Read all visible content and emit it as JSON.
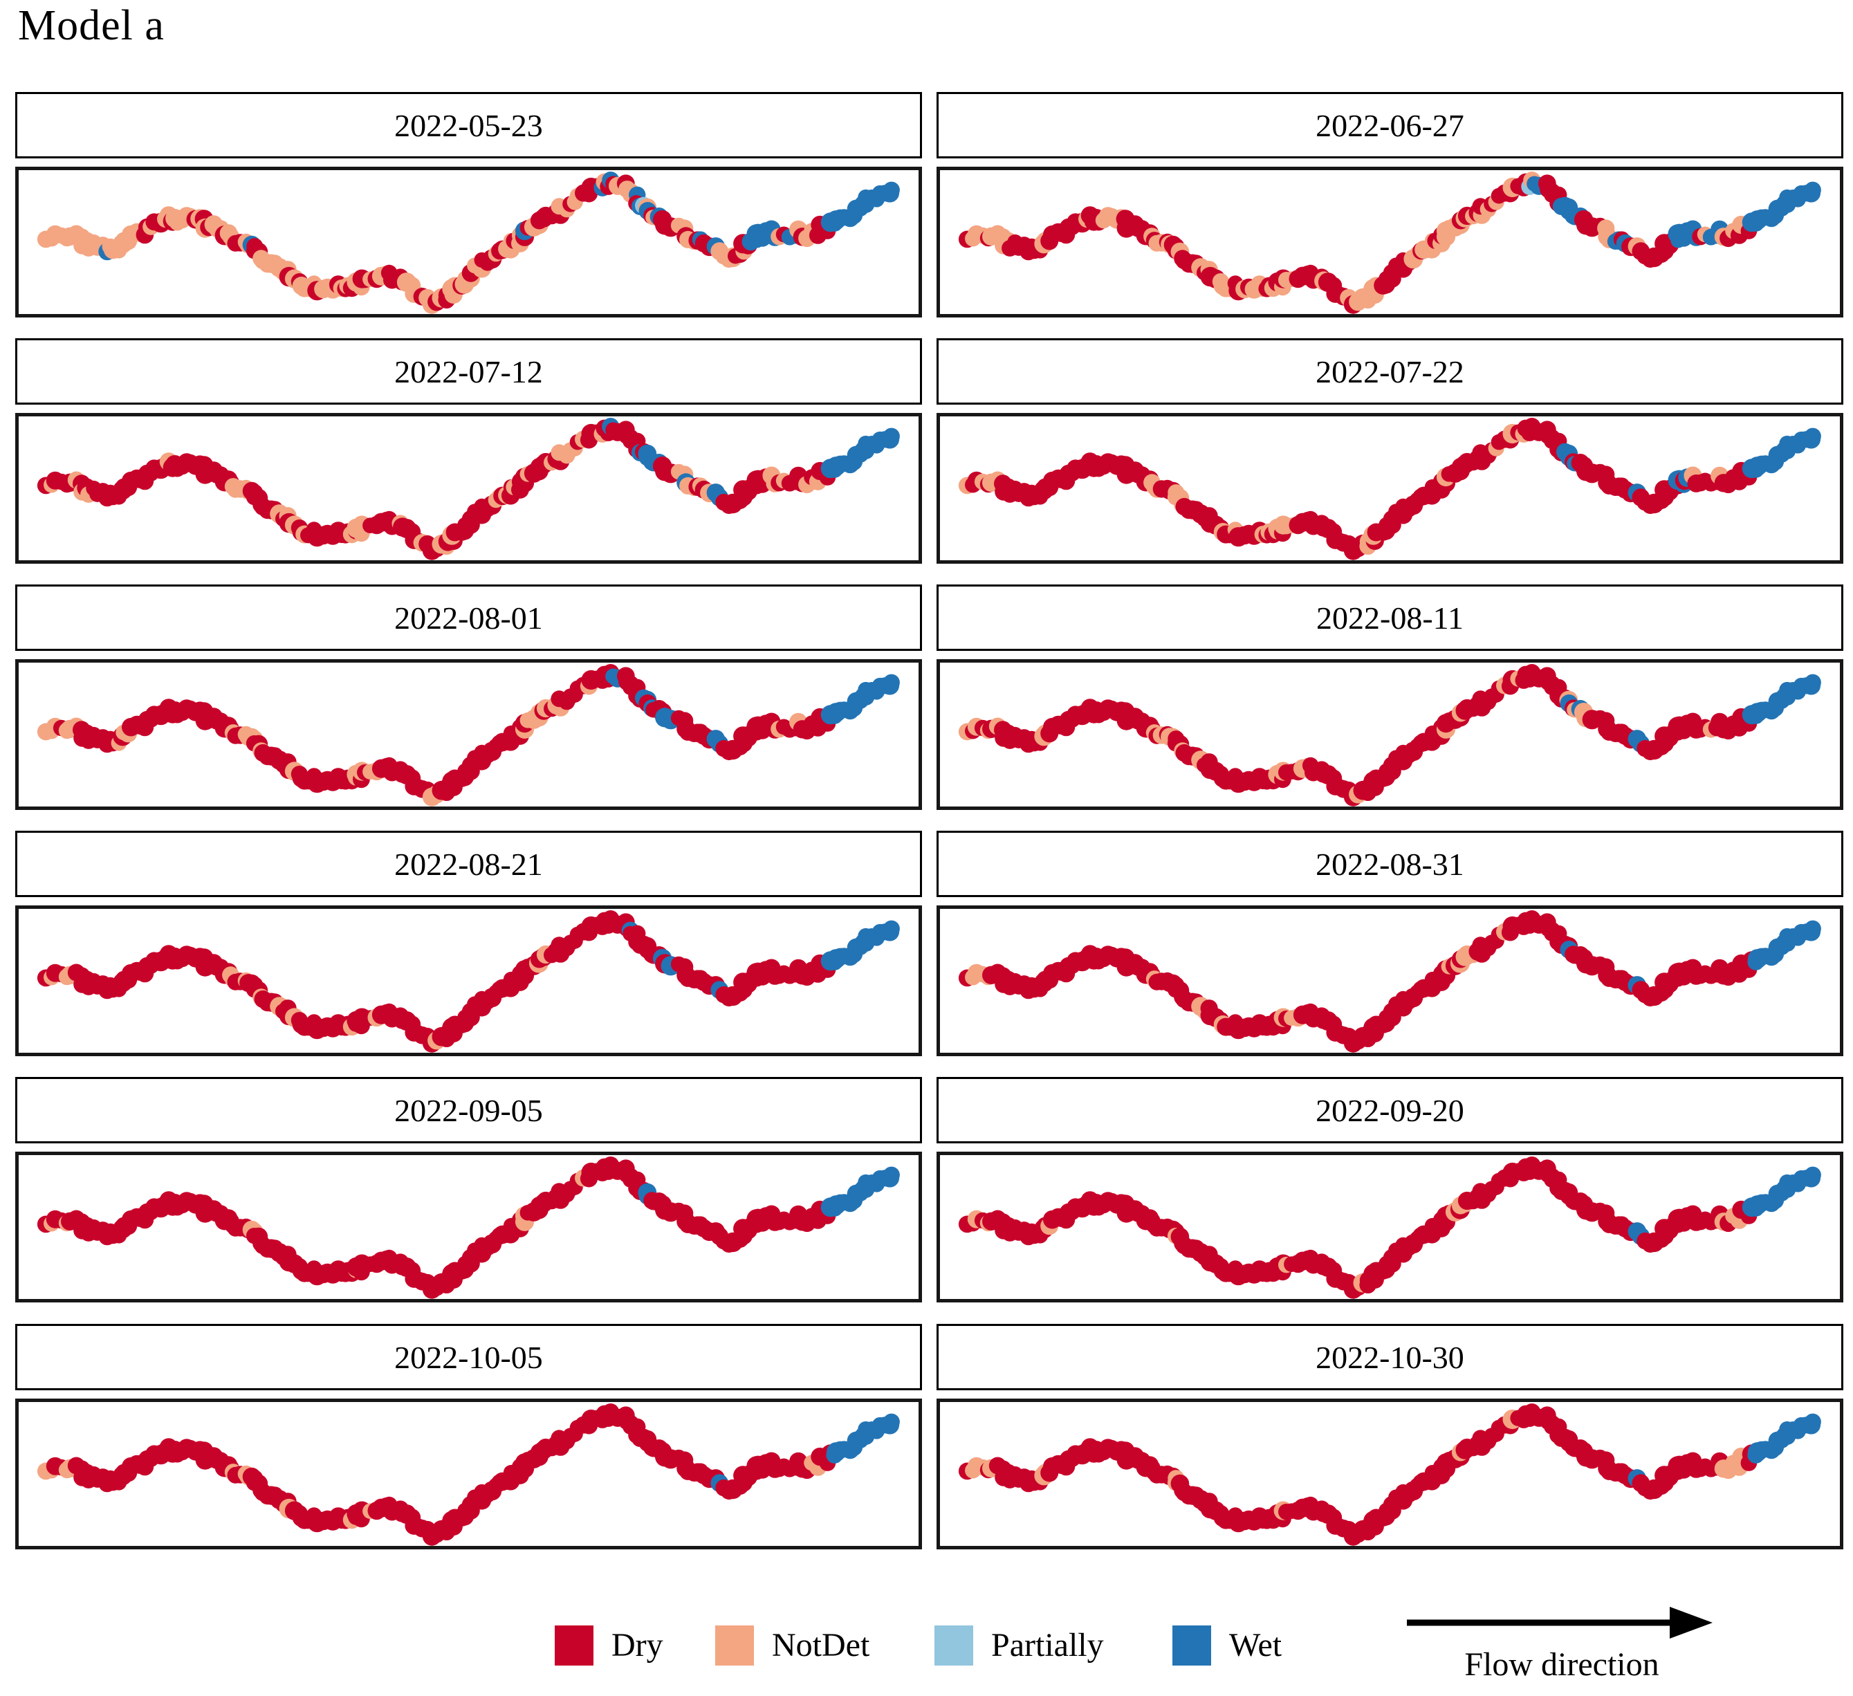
{
  "title": "Model a",
  "legend": {
    "items": [
      {
        "label": "Dry",
        "color": "#c8032a"
      },
      {
        "label": "NotDet",
        "color": "#f4a582"
      },
      {
        "label": "Partially",
        "color": "#92c5de"
      },
      {
        "label": "Wet",
        "color": "#2374b5"
      }
    ]
  },
  "flow": {
    "label": "Flow direction"
  },
  "chart_data": {
    "type": "scatter",
    "title": "Model a",
    "description": "Twelve faceted maps (6 rows x 2 columns) of the same river reach; overlapping dots along the channel are colored by wetness state on each survey date. Flow direction is left to right.",
    "facet_layout": {
      "rows": 6,
      "cols": 2
    },
    "states": [
      "Dry",
      "NotDet",
      "Partially",
      "Wet"
    ],
    "state_colors": {
      "Dry": "#c8032a",
      "NotDet": "#f4a582",
      "Partially": "#92c5de",
      "Wet": "#2374b5"
    },
    "path_points": [
      [
        0.03,
        0.47
      ],
      [
        0.045,
        0.45
      ],
      [
        0.06,
        0.46
      ],
      [
        0.075,
        0.52
      ],
      [
        0.09,
        0.54
      ],
      [
        0.105,
        0.55
      ],
      [
        0.12,
        0.5
      ],
      [
        0.14,
        0.4
      ],
      [
        0.158,
        0.33
      ],
      [
        0.175,
        0.31
      ],
      [
        0.19,
        0.32
      ],
      [
        0.205,
        0.35
      ],
      [
        0.22,
        0.41
      ],
      [
        0.235,
        0.46
      ],
      [
        0.25,
        0.51
      ],
      [
        0.265,
        0.58
      ],
      [
        0.28,
        0.66
      ],
      [
        0.295,
        0.73
      ],
      [
        0.31,
        0.8
      ],
      [
        0.325,
        0.86
      ],
      [
        0.34,
        0.88
      ],
      [
        0.352,
        0.86
      ],
      [
        0.364,
        0.88
      ],
      [
        0.378,
        0.84
      ],
      [
        0.392,
        0.79
      ],
      [
        0.405,
        0.77
      ],
      [
        0.418,
        0.8
      ],
      [
        0.432,
        0.85
      ],
      [
        0.447,
        0.91
      ],
      [
        0.462,
        0.97
      ],
      [
        0.474,
        0.94
      ],
      [
        0.487,
        0.86
      ],
      [
        0.5,
        0.77
      ],
      [
        0.513,
        0.69
      ],
      [
        0.527,
        0.62
      ],
      [
        0.54,
        0.57
      ],
      [
        0.553,
        0.49
      ],
      [
        0.567,
        0.41
      ],
      [
        0.58,
        0.35
      ],
      [
        0.594,
        0.28
      ],
      [
        0.608,
        0.22
      ],
      [
        0.622,
        0.16
      ],
      [
        0.636,
        0.09
      ],
      [
        0.65,
        0.04
      ],
      [
        0.662,
        0.02
      ],
      [
        0.673,
        0.06
      ],
      [
        0.684,
        0.13
      ],
      [
        0.696,
        0.21
      ],
      [
        0.708,
        0.28
      ],
      [
        0.722,
        0.34
      ],
      [
        0.736,
        0.41
      ],
      [
        0.75,
        0.48
      ],
      [
        0.764,
        0.53
      ],
      [
        0.778,
        0.59
      ],
      [
        0.79,
        0.63
      ],
      [
        0.8,
        0.58
      ],
      [
        0.812,
        0.5
      ],
      [
        0.825,
        0.45
      ],
      [
        0.838,
        0.43
      ],
      [
        0.851,
        0.46
      ],
      [
        0.864,
        0.41
      ],
      [
        0.877,
        0.44
      ],
      [
        0.89,
        0.4
      ],
      [
        0.903,
        0.36
      ],
      [
        0.916,
        0.31
      ],
      [
        0.93,
        0.24
      ],
      [
        0.944,
        0.17
      ],
      [
        0.958,
        0.13
      ],
      [
        0.972,
        0.1
      ]
    ],
    "facets": [
      {
        "date": "2022-05-23",
        "notdet_zones": [
          [
            0.0,
            0.075,
            0.85
          ],
          [
            0.075,
            0.13,
            0.45
          ],
          [
            0.13,
            0.2,
            0.55
          ],
          [
            0.2,
            0.335,
            0.6
          ],
          [
            0.335,
            0.47,
            0.5
          ],
          [
            0.47,
            0.56,
            0.6
          ],
          [
            0.56,
            0.665,
            0.55
          ],
          [
            0.665,
            0.7,
            0.45
          ],
          [
            0.7,
            0.79,
            0.45
          ],
          [
            0.79,
            0.835,
            0.4
          ],
          [
            0.865,
            0.93,
            0.5
          ]
        ],
        "wet_zones": [
          [
            0.062,
            0.072,
            0.5
          ],
          [
            0.228,
            0.242,
            0.55
          ],
          [
            0.43,
            0.442,
            0.45
          ],
          [
            0.555,
            0.565,
            0.4
          ],
          [
            0.648,
            0.662,
            0.5
          ],
          [
            0.69,
            0.75,
            0.5
          ],
          [
            0.77,
            0.8,
            0.35
          ],
          [
            0.835,
            0.868,
            0.95
          ],
          [
            0.875,
            0.888,
            0.55
          ],
          [
            0.925,
            1.0,
            1.0
          ]
        ],
        "partially_zones": [
          [
            0.655,
            0.668,
            0.35
          ],
          [
            0.7,
            0.715,
            0.25
          ]
        ]
      },
      {
        "date": "2022-06-27",
        "notdet_zones": [
          [
            0.0,
            0.05,
            0.75
          ],
          [
            0.08,
            0.1,
            0.35
          ],
          [
            0.13,
            0.175,
            0.3
          ],
          [
            0.2,
            0.265,
            0.5
          ],
          [
            0.265,
            0.34,
            0.4
          ],
          [
            0.34,
            0.41,
            0.4
          ],
          [
            0.42,
            0.47,
            0.5
          ],
          [
            0.51,
            0.625,
            0.55
          ],
          [
            0.625,
            0.665,
            0.35
          ],
          [
            0.69,
            0.73,
            0.3
          ],
          [
            0.75,
            0.8,
            0.4
          ],
          [
            0.86,
            0.92,
            0.35
          ]
        ],
        "wet_zones": [
          [
            0.66,
            0.672,
            0.45
          ],
          [
            0.698,
            0.728,
            0.85
          ],
          [
            0.765,
            0.785,
            0.5
          ],
          [
            0.79,
            0.802,
            0.55
          ],
          [
            0.842,
            0.868,
            0.85
          ],
          [
            0.875,
            0.89,
            0.5
          ],
          [
            0.925,
            1.0,
            1.0
          ]
        ],
        "partially_zones": [
          [
            0.655,
            0.665,
            0.3
          ]
        ]
      },
      {
        "date": "2022-07-12",
        "notdet_zones": [
          [
            0.0,
            0.05,
            0.65
          ],
          [
            0.13,
            0.17,
            0.3
          ],
          [
            0.2,
            0.245,
            0.45
          ],
          [
            0.26,
            0.305,
            0.35
          ],
          [
            0.33,
            0.4,
            0.4
          ],
          [
            0.425,
            0.465,
            0.45
          ],
          [
            0.51,
            0.565,
            0.3
          ],
          [
            0.575,
            0.635,
            0.45
          ],
          [
            0.64,
            0.665,
            0.3
          ],
          [
            0.745,
            0.795,
            0.4
          ],
          [
            0.86,
            0.915,
            0.5
          ]
        ],
        "wet_zones": [
          [
            0.66,
            0.672,
            0.4
          ],
          [
            0.698,
            0.728,
            0.85
          ],
          [
            0.748,
            0.76,
            0.4
          ],
          [
            0.785,
            0.802,
            0.8
          ],
          [
            0.87,
            0.885,
            0.5
          ],
          [
            0.925,
            1.0,
            1.0
          ]
        ],
        "partially_zones": [
          [
            0.7,
            0.712,
            0.3
          ]
        ]
      },
      {
        "date": "2022-07-22",
        "notdet_zones": [
          [
            0.0,
            0.04,
            0.6
          ],
          [
            0.08,
            0.1,
            0.3
          ],
          [
            0.2,
            0.245,
            0.45
          ],
          [
            0.265,
            0.315,
            0.35
          ],
          [
            0.335,
            0.395,
            0.3
          ],
          [
            0.435,
            0.465,
            0.35
          ],
          [
            0.555,
            0.605,
            0.35
          ],
          [
            0.615,
            0.655,
            0.3
          ],
          [
            0.86,
            0.9,
            0.3
          ]
        ],
        "wet_zones": [
          [
            0.652,
            0.664,
            0.3
          ],
          [
            0.7,
            0.722,
            0.55
          ],
          [
            0.787,
            0.802,
            0.85
          ],
          [
            0.845,
            0.858,
            0.4
          ],
          [
            0.925,
            1.0,
            1.0
          ]
        ],
        "partially_zones": []
      },
      {
        "date": "2022-08-01",
        "notdet_zones": [
          [
            0.0,
            0.035,
            0.55
          ],
          [
            0.075,
            0.09,
            0.3
          ],
          [
            0.205,
            0.245,
            0.45
          ],
          [
            0.265,
            0.3,
            0.3
          ],
          [
            0.34,
            0.385,
            0.3
          ],
          [
            0.435,
            0.465,
            0.3
          ],
          [
            0.555,
            0.605,
            0.35
          ],
          [
            0.62,
            0.65,
            0.4
          ],
          [
            0.865,
            0.89,
            0.3
          ]
        ],
        "wet_zones": [
          [
            0.662,
            0.672,
            0.4
          ],
          [
            0.702,
            0.722,
            0.65
          ],
          [
            0.728,
            0.74,
            0.35
          ],
          [
            0.787,
            0.802,
            0.9
          ],
          [
            0.925,
            1.0,
            1.0
          ]
        ],
        "partially_zones": []
      },
      {
        "date": "2022-08-11",
        "notdet_zones": [
          [
            0.0,
            0.035,
            0.55
          ],
          [
            0.08,
            0.092,
            0.25
          ],
          [
            0.205,
            0.245,
            0.4
          ],
          [
            0.265,
            0.3,
            0.3
          ],
          [
            0.345,
            0.385,
            0.25
          ],
          [
            0.44,
            0.462,
            0.25
          ],
          [
            0.555,
            0.605,
            0.3
          ],
          [
            0.625,
            0.648,
            0.3
          ],
          [
            0.7,
            0.75,
            0.35
          ],
          [
            0.865,
            0.885,
            0.25
          ]
        ],
        "wet_zones": [
          [
            0.7,
            0.728,
            0.5
          ],
          [
            0.787,
            0.8,
            0.85
          ],
          [
            0.872,
            0.882,
            0.4
          ],
          [
            0.925,
            1.0,
            1.0
          ]
        ],
        "partially_zones": []
      },
      {
        "date": "2022-08-21",
        "notdet_zones": [
          [
            0.0,
            0.03,
            0.5
          ],
          [
            0.205,
            0.245,
            0.4
          ],
          [
            0.265,
            0.3,
            0.3
          ],
          [
            0.345,
            0.385,
            0.25
          ],
          [
            0.44,
            0.46,
            0.25
          ],
          [
            0.555,
            0.6,
            0.3
          ],
          [
            0.618,
            0.64,
            0.3
          ],
          [
            0.87,
            0.885,
            0.2
          ]
        ],
        "wet_zones": [
          [
            0.682,
            0.695,
            0.35
          ],
          [
            0.728,
            0.74,
            0.3
          ],
          [
            0.787,
            0.8,
            0.85
          ],
          [
            0.925,
            1.0,
            1.0
          ]
        ],
        "partially_zones": []
      },
      {
        "date": "2022-08-31",
        "notdet_zones": [
          [
            0.0,
            0.03,
            0.5
          ],
          [
            0.205,
            0.24,
            0.35
          ],
          [
            0.265,
            0.295,
            0.25
          ],
          [
            0.345,
            0.38,
            0.25
          ],
          [
            0.445,
            0.46,
            0.2
          ],
          [
            0.555,
            0.595,
            0.3
          ],
          [
            0.62,
            0.64,
            0.3
          ]
        ],
        "wet_zones": [
          [
            0.7,
            0.712,
            0.35
          ],
          [
            0.787,
            0.8,
            0.8
          ],
          [
            0.93,
            1.0,
            1.0
          ]
        ],
        "partially_zones": []
      },
      {
        "date": "2022-09-05",
        "notdet_zones": [
          [
            0.0,
            0.03,
            0.45
          ],
          [
            0.205,
            0.24,
            0.35
          ],
          [
            0.265,
            0.29,
            0.25
          ],
          [
            0.345,
            0.38,
            0.2
          ],
          [
            0.44,
            0.455,
            0.2
          ],
          [
            0.555,
            0.595,
            0.25
          ],
          [
            0.625,
            0.645,
            0.25
          ],
          [
            0.875,
            0.89,
            0.2
          ]
        ],
        "wet_zones": [
          [
            0.708,
            0.716,
            0.3
          ],
          [
            0.788,
            0.798,
            0.6
          ],
          [
            0.925,
            1.0,
            1.0
          ]
        ],
        "partially_zones": []
      },
      {
        "date": "2022-09-20",
        "notdet_zones": [
          [
            0.0,
            0.028,
            0.45
          ],
          [
            0.082,
            0.095,
            0.25
          ],
          [
            0.205,
            0.24,
            0.35
          ],
          [
            0.265,
            0.29,
            0.25
          ],
          [
            0.345,
            0.38,
            0.2
          ],
          [
            0.442,
            0.455,
            0.2
          ],
          [
            0.555,
            0.595,
            0.25
          ],
          [
            0.625,
            0.645,
            0.25
          ],
          [
            0.888,
            0.918,
            0.7
          ]
        ],
        "wet_zones": [
          [
            0.788,
            0.8,
            0.65
          ],
          [
            0.925,
            1.0,
            1.0
          ]
        ],
        "partially_zones": []
      },
      {
        "date": "2022-10-05",
        "notdet_zones": [
          [
            0.0,
            0.028,
            0.45
          ],
          [
            0.205,
            0.235,
            0.3
          ],
          [
            0.265,
            0.29,
            0.2
          ],
          [
            0.345,
            0.375,
            0.2
          ],
          [
            0.555,
            0.585,
            0.2
          ],
          [
            0.625,
            0.642,
            0.2
          ],
          [
            0.89,
            0.912,
            0.55
          ]
        ],
        "wet_zones": [
          [
            0.788,
            0.798,
            0.5
          ],
          [
            0.928,
            1.0,
            1.0
          ]
        ],
        "partially_zones": []
      },
      {
        "date": "2022-10-30",
        "notdet_zones": [
          [
            0.0,
            0.028,
            0.45
          ],
          [
            0.082,
            0.094,
            0.2
          ],
          [
            0.205,
            0.235,
            0.3
          ],
          [
            0.265,
            0.29,
            0.2
          ],
          [
            0.345,
            0.375,
            0.2
          ],
          [
            0.443,
            0.455,
            0.2
          ],
          [
            0.555,
            0.585,
            0.2
          ],
          [
            0.625,
            0.642,
            0.2
          ],
          [
            0.895,
            0.92,
            0.85
          ]
        ],
        "wet_zones": [
          [
            0.788,
            0.796,
            0.35
          ],
          [
            0.928,
            1.0,
            1.0
          ]
        ],
        "partially_zones": []
      }
    ]
  }
}
